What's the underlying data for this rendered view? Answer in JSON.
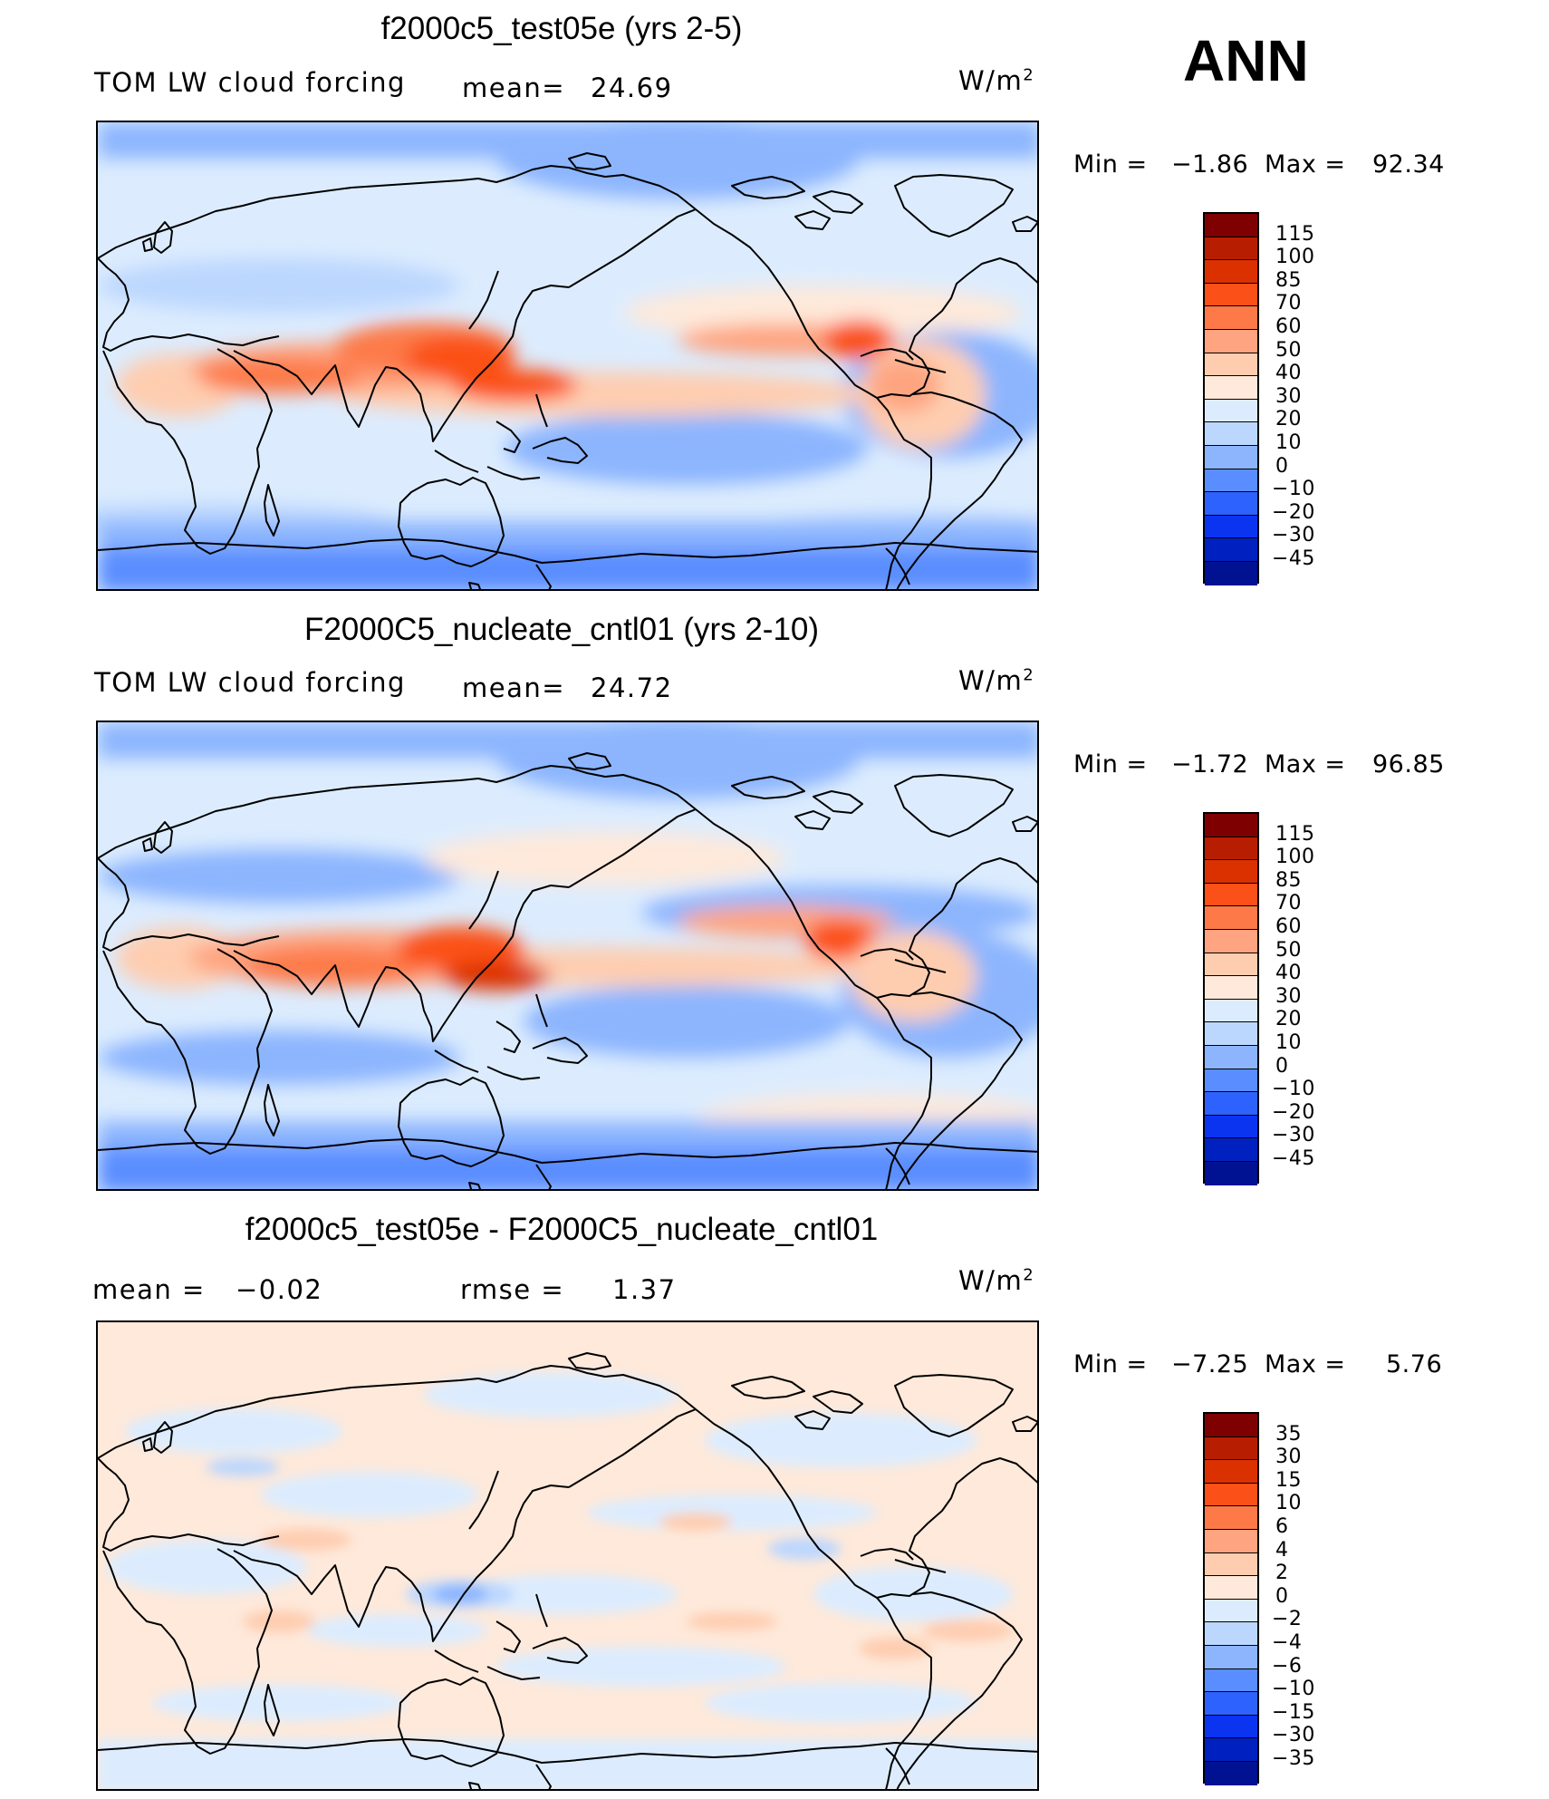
{
  "season": "ANN",
  "chart_data": [
    {
      "type": "heatmap",
      "title": "f2000c5_test05e (yrs 2-5)",
      "variable": "TOM LW cloud forcing",
      "mean_label": "mean=",
      "mean_value": "24.69",
      "units_base": "W/m",
      "units_exp": "2",
      "min_label": "Min =",
      "min_value": "−1.86",
      "max_label": "Max =",
      "max_value": "92.34",
      "colorbar": {
        "labels": [
          "115",
          "100",
          "85",
          "70",
          "60",
          "50",
          "40",
          "30",
          "20",
          "10",
          "0",
          "−10",
          "−20",
          "−30",
          "−45"
        ],
        "colors": [
          "#7f0000",
          "#b71d00",
          "#db3100",
          "#fb5118",
          "#fd7a48",
          "#fea480",
          "#fecdb0",
          "#fee9da",
          "#dcecfe",
          "#bcd7fe",
          "#8cb5fe",
          "#5a8dff",
          "#2e62fe",
          "#0a34ef",
          "#0021bf",
          "#001191"
        ]
      }
    },
    {
      "type": "heatmap",
      "title": "F2000C5_nucleate_cntl01 (yrs 2-10)",
      "variable": "TOM LW cloud forcing",
      "mean_label": "mean=",
      "mean_value": "24.72",
      "units_base": "W/m",
      "units_exp": "2",
      "min_label": "Min =",
      "min_value": "−1.72",
      "max_label": "Max =",
      "max_value": "96.85",
      "colorbar": {
        "labels": [
          "115",
          "100",
          "85",
          "70",
          "60",
          "50",
          "40",
          "30",
          "20",
          "10",
          "0",
          "−10",
          "−20",
          "−30",
          "−45"
        ],
        "colors": [
          "#7f0000",
          "#b71d00",
          "#db3100",
          "#fb5118",
          "#fd7a48",
          "#fea480",
          "#fecdb0",
          "#fee9da",
          "#dcecfe",
          "#bcd7fe",
          "#8cb5fe",
          "#5a8dff",
          "#2e62fe",
          "#0a34ef",
          "#0021bf",
          "#001191"
        ]
      }
    },
    {
      "type": "heatmap",
      "title": "f2000c5_test05e - F2000C5_nucleate_cntl01",
      "mean_label": "mean =",
      "mean_value": "−0.02",
      "rmse_label": "rmse =",
      "rmse_value": "1.37",
      "units_base": "W/m",
      "units_exp": "2",
      "min_label": "Min =",
      "min_value": "−7.25",
      "max_label": "Max =",
      "max_value": "5.76",
      "colorbar": {
        "labels": [
          "35",
          "30",
          "15",
          "10",
          "6",
          "4",
          "2",
          "0",
          "−2",
          "−4",
          "−6",
          "−10",
          "−15",
          "−30",
          "−35"
        ],
        "colors": [
          "#7f0000",
          "#b71d00",
          "#db3100",
          "#fb5118",
          "#fd7a48",
          "#fea480",
          "#fecdb0",
          "#fee9da",
          "#dcecfe",
          "#bcd7fe",
          "#8cb5fe",
          "#5a8dff",
          "#2e62fe",
          "#0a34ef",
          "#0021bf",
          "#001191"
        ]
      }
    }
  ]
}
